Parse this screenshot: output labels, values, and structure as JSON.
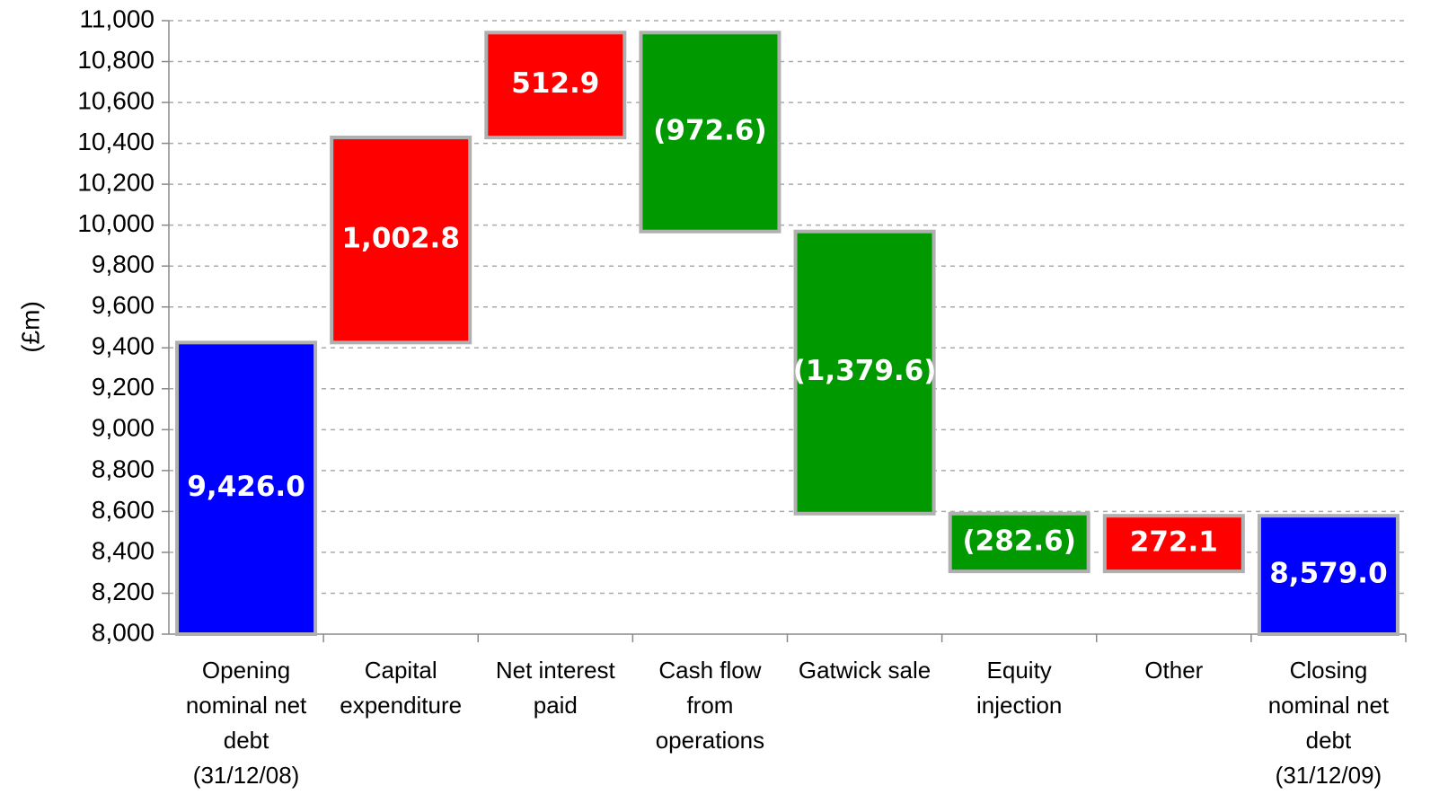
{
  "chart_data": {
    "type": "waterfall",
    "y_label": "(£m)",
    "categories": [
      "Opening nominal net debt (31/12/08)",
      "Capital expenditure",
      "Net interest paid",
      "Cash flow from operations",
      "Gatwick sale",
      "Equity injection",
      "Other",
      "Closing nominal net debt (31/12/09)"
    ],
    "values": [
      9426.0,
      1002.8,
      512.9,
      -972.6,
      -1379.6,
      -282.6,
      272.1,
      8579.0
    ],
    "value_labels": [
      "9,426.0",
      "1,002.8",
      "512.9",
      "(972.6)",
      "(1,379.6)",
      "(282.6)",
      "272.1",
      "8,579.0"
    ],
    "totals": [
      0,
      7
    ],
    "colors": [
      "#0000ff",
      "#ff0000",
      "#ff0000",
      "#009900",
      "#009900",
      "#009900",
      "#ff0000",
      "#0000ff"
    ],
    "ylim": [
      8000,
      11000
    ],
    "yticks": [
      {
        "value": 8000,
        "label": "8,000"
      },
      {
        "value": 8200,
        "label": "8,200"
      },
      {
        "value": 8400,
        "label": "8,400"
      },
      {
        "value": 8600,
        "label": "8,600"
      },
      {
        "value": 8800,
        "label": "8,800"
      },
      {
        "value": 9000,
        "label": "9,000"
      },
      {
        "value": 9200,
        "label": "9,200"
      },
      {
        "value": 9400,
        "label": "9,400"
      },
      {
        "value": 9600,
        "label": "9,600"
      },
      {
        "value": 9800,
        "label": "9,800"
      },
      {
        "value": 10000,
        "label": "10,000"
      },
      {
        "value": 10200,
        "label": "10,200"
      },
      {
        "value": 10400,
        "label": "10,400"
      },
      {
        "value": 10600,
        "label": "10,600"
      },
      {
        "value": 10800,
        "label": "10,800"
      },
      {
        "value": 11000,
        "label": "11,000"
      }
    ],
    "grid": true
  }
}
